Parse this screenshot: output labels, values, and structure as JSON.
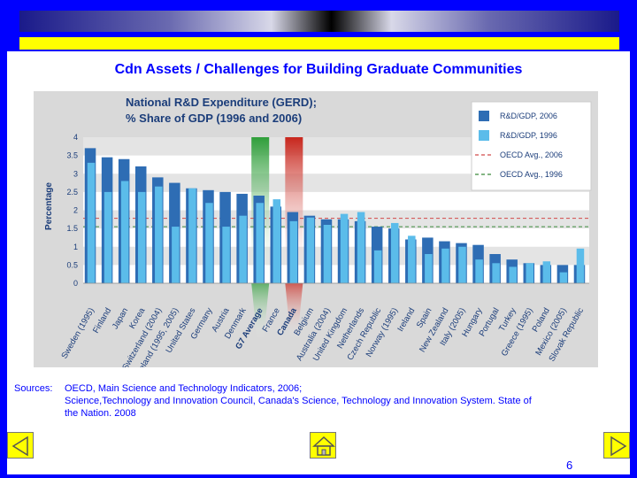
{
  "slide": {
    "title": "Cdn Assets / Challenges for Building Graduate Communities",
    "sources_label": "Sources:",
    "sources_lines": [
      "OECD, Main Science and Technology Indicators, 2006;",
      "Science,Technology and Innovation Council, Canada's Science, Technology and Innovation System. State of",
      "the Nation. 2008"
    ],
    "page_number": "6"
  },
  "nav": {
    "prev_icon": "arrow-left-icon",
    "home_icon": "home-icon",
    "next_icon": "arrow-right-icon"
  },
  "chart_data": {
    "type": "bar",
    "title": "National R&D Expenditure (GERD);",
    "subtitle": "% Share of GDP (1996 and 2006)",
    "ylabel": "Percentage",
    "ylim": [
      0,
      4
    ],
    "yticks": [
      "0",
      "0.5",
      "1",
      "1.5",
      "2",
      "2.5",
      "3",
      "3.5",
      "4"
    ],
    "legend_position": "top-right",
    "categories": [
      "Sweden (1995)",
      "Finland",
      "Japan",
      "Korea",
      "Switzerland (2004)",
      "Iceland (1995, 2005)",
      "United States",
      "Germany",
      "Austria",
      "Denmark",
      "G7 Average",
      "France",
      "Canada",
      "Belgium",
      "Australia (2004)",
      "United Kingdom",
      "Netherlands",
      "Czech Republic",
      "Norway (1995)",
      "Ireland",
      "Spain",
      "New Zealand",
      "Italy (2005)",
      "Hungary",
      "Portugal",
      "Turkey",
      "Greece (1995)",
      "Poland",
      "Mexico (2005)",
      "Slovak Republic"
    ],
    "series": [
      {
        "name": "R&D/GDP, 2006",
        "color": "#2e6db4",
        "values": [
          3.7,
          3.45,
          3.4,
          3.2,
          2.9,
          2.75,
          2.6,
          2.55,
          2.5,
          2.45,
          2.4,
          2.1,
          1.95,
          1.85,
          1.75,
          1.75,
          1.7,
          1.55,
          1.5,
          1.2,
          1.25,
          1.15,
          1.1,
          1.05,
          0.8,
          0.65,
          0.55,
          0.5,
          0.5,
          0.5
        ]
      },
      {
        "name": "R&D/GDP, 1996",
        "color": "#5bbcea",
        "values": [
          3.3,
          2.5,
          2.8,
          2.5,
          2.65,
          1.55,
          2.6,
          2.2,
          1.55,
          1.85,
          2.2,
          2.3,
          1.7,
          1.8,
          1.6,
          1.9,
          1.95,
          0.9,
          1.65,
          1.3,
          0.8,
          0.95,
          1.0,
          0.65,
          0.55,
          0.45,
          0.55,
          0.6,
          0.3,
          0.95
        ]
      }
    ],
    "reference_lines": [
      {
        "name": "OECD Avg., 2006",
        "value": 1.78,
        "color": "#d24a4a",
        "style": "dashed"
      },
      {
        "name": "OECD Avg., 1996",
        "value": 1.55,
        "color": "#3a8a3a",
        "style": "dashed"
      }
    ],
    "highlighted_categories": [
      {
        "category": "G7 Average",
        "color": "#2f9e3a"
      },
      {
        "category": "Canada",
        "color": "#c8261c"
      }
    ],
    "grid": "alternating bands"
  }
}
